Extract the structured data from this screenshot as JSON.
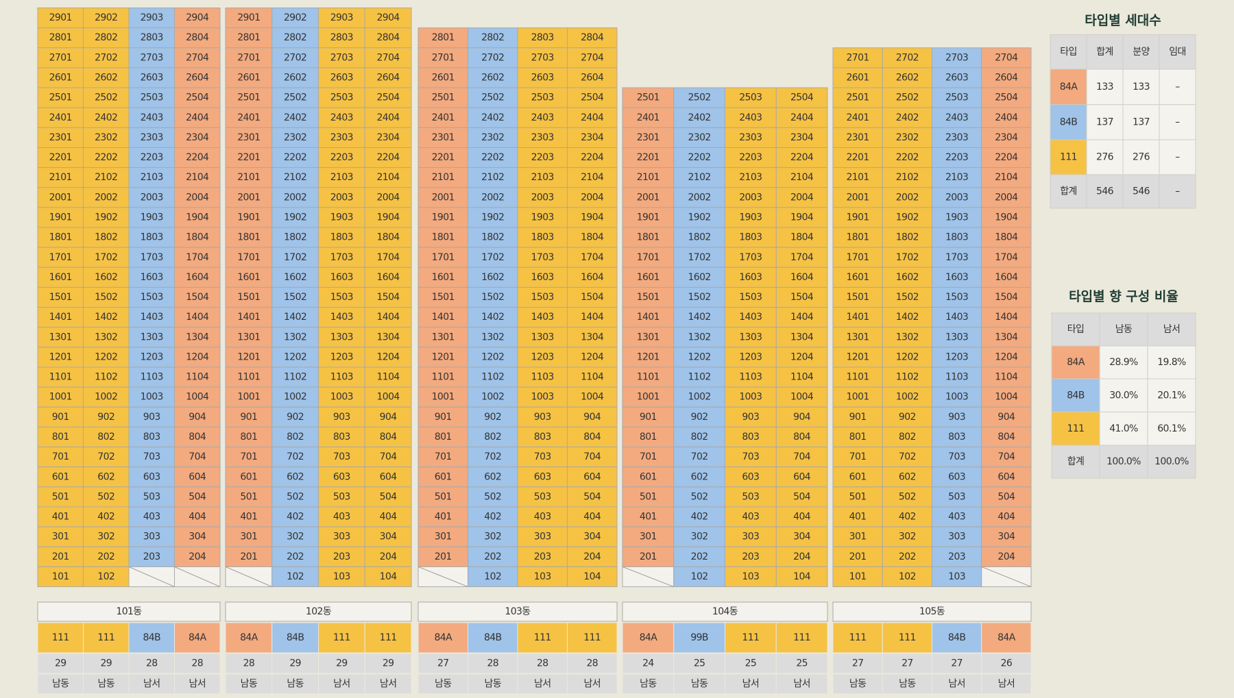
{
  "buildings": [
    {
      "name": "101동",
      "types": [
        "111",
        "111",
        "84B",
        "84A"
      ],
      "counts": [
        29,
        29,
        28,
        28
      ],
      "directions": [
        "남동",
        "남동",
        "남서",
        "남서"
      ],
      "rows": [
        [
          "2901",
          "2902",
          "2903",
          "2904"
        ],
        [
          "2801",
          "2802",
          "2803",
          "2804"
        ],
        [
          "2701",
          "2702",
          "2703",
          "2704"
        ],
        [
          "2601",
          "2602",
          "2603",
          "2604"
        ],
        [
          "2501",
          "2502",
          "2503",
          "2504"
        ],
        [
          "2401",
          "2402",
          "2403",
          "2404"
        ],
        [
          "2301",
          "2302",
          "2303",
          "2304"
        ],
        [
          "2201",
          "2202",
          "2203",
          "2204"
        ],
        [
          "2101",
          "2102",
          "2103",
          "2104"
        ],
        [
          "2001",
          "2002",
          "2003",
          "2004"
        ],
        [
          "1901",
          "1902",
          "1903",
          "1904"
        ],
        [
          "1801",
          "1802",
          "1803",
          "1804"
        ],
        [
          "1701",
          "1702",
          "1703",
          "1704"
        ],
        [
          "1601",
          "1602",
          "1603",
          "1604"
        ],
        [
          "1501",
          "1502",
          "1503",
          "1504"
        ],
        [
          "1401",
          "1402",
          "1403",
          "1404"
        ],
        [
          "1301",
          "1302",
          "1303",
          "1304"
        ],
        [
          "1201",
          "1202",
          "1203",
          "1204"
        ],
        [
          "1101",
          "1102",
          "1103",
          "1104"
        ],
        [
          "1001",
          "1002",
          "1003",
          "1004"
        ],
        [
          "901",
          "902",
          "903",
          "904"
        ],
        [
          "801",
          "802",
          "803",
          "804"
        ],
        [
          "701",
          "702",
          "703",
          "704"
        ],
        [
          "601",
          "602",
          "603",
          "604"
        ],
        [
          "501",
          "502",
          "503",
          "504"
        ],
        [
          "401",
          "402",
          "403",
          "404"
        ],
        [
          "301",
          "302",
          "303",
          "304"
        ],
        [
          "201",
          "202",
          "203",
          "204"
        ],
        [
          "101",
          "102",
          null,
          null
        ]
      ]
    },
    {
      "name": "102동",
      "types": [
        "84A",
        "84B",
        "111",
        "111"
      ],
      "counts": [
        28,
        29,
        29,
        29
      ],
      "directions": [
        "남동",
        "남동",
        "남서",
        "남서"
      ],
      "rows": [
        [
          "2901",
          "2902",
          "2903",
          "2904"
        ],
        [
          "2801",
          "2802",
          "2803",
          "2804"
        ],
        [
          "2701",
          "2702",
          "2703",
          "2704"
        ],
        [
          "2601",
          "2602",
          "2603",
          "2604"
        ],
        [
          "2501",
          "2502",
          "2503",
          "2504"
        ],
        [
          "2401",
          "2402",
          "2403",
          "2404"
        ],
        [
          "2301",
          "2302",
          "2303",
          "2304"
        ],
        [
          "2201",
          "2202",
          "2203",
          "2204"
        ],
        [
          "2101",
          "2102",
          "2103",
          "2104"
        ],
        [
          "2001",
          "2002",
          "2003",
          "2004"
        ],
        [
          "1901",
          "1902",
          "1903",
          "1904"
        ],
        [
          "1801",
          "1802",
          "1803",
          "1804"
        ],
        [
          "1701",
          "1702",
          "1703",
          "1704"
        ],
        [
          "1601",
          "1602",
          "1603",
          "1604"
        ],
        [
          "1501",
          "1502",
          "1503",
          "1504"
        ],
        [
          "1401",
          "1402",
          "1403",
          "1404"
        ],
        [
          "1301",
          "1302",
          "1303",
          "1304"
        ],
        [
          "1201",
          "1202",
          "1203",
          "1204"
        ],
        [
          "1101",
          "1102",
          "1103",
          "1104"
        ],
        [
          "1001",
          "1002",
          "1003",
          "1004"
        ],
        [
          "901",
          "902",
          "903",
          "904"
        ],
        [
          "801",
          "802",
          "803",
          "804"
        ],
        [
          "701",
          "702",
          "703",
          "704"
        ],
        [
          "601",
          "602",
          "603",
          "604"
        ],
        [
          "501",
          "502",
          "503",
          "504"
        ],
        [
          "401",
          "402",
          "403",
          "404"
        ],
        [
          "301",
          "302",
          "303",
          "304"
        ],
        [
          "201",
          "202",
          "203",
          "204"
        ],
        [
          null,
          "102",
          "103",
          "104"
        ]
      ]
    },
    {
      "name": "103동",
      "types": [
        "84A",
        "84B",
        "111",
        "111"
      ],
      "counts": [
        27,
        28,
        28,
        28
      ],
      "directions": [
        "남동",
        "남동",
        "남서",
        "남서"
      ],
      "rows": [
        [
          "2801",
          "2802",
          "2803",
          "2804"
        ],
        [
          "2701",
          "2702",
          "2703",
          "2704"
        ],
        [
          "2601",
          "2602",
          "2603",
          "2604"
        ],
        [
          "2501",
          "2502",
          "2503",
          "2504"
        ],
        [
          "2401",
          "2402",
          "2403",
          "2404"
        ],
        [
          "2301",
          "2302",
          "2303",
          "2304"
        ],
        [
          "2201",
          "2202",
          "2203",
          "2204"
        ],
        [
          "2101",
          "2102",
          "2103",
          "2104"
        ],
        [
          "2001",
          "2002",
          "2003",
          "2004"
        ],
        [
          "1901",
          "1902",
          "1903",
          "1904"
        ],
        [
          "1801",
          "1802",
          "1803",
          "1804"
        ],
        [
          "1701",
          "1702",
          "1703",
          "1704"
        ],
        [
          "1601",
          "1602",
          "1603",
          "1604"
        ],
        [
          "1501",
          "1502",
          "1503",
          "1504"
        ],
        [
          "1401",
          "1402",
          "1403",
          "1404"
        ],
        [
          "1301",
          "1302",
          "1303",
          "1304"
        ],
        [
          "1201",
          "1202",
          "1203",
          "1204"
        ],
        [
          "1101",
          "1102",
          "1103",
          "1104"
        ],
        [
          "1001",
          "1002",
          "1003",
          "1004"
        ],
        [
          "901",
          "902",
          "903",
          "904"
        ],
        [
          "801",
          "802",
          "803",
          "804"
        ],
        [
          "701",
          "702",
          "703",
          "704"
        ],
        [
          "601",
          "602",
          "603",
          "604"
        ],
        [
          "501",
          "502",
          "503",
          "504"
        ],
        [
          "401",
          "402",
          "403",
          "404"
        ],
        [
          "301",
          "302",
          "303",
          "304"
        ],
        [
          "201",
          "202",
          "203",
          "204"
        ],
        [
          null,
          "102",
          "103",
          "104"
        ]
      ]
    },
    {
      "name": "104동",
      "types": [
        "84A",
        "99B",
        "111",
        "111"
      ],
      "counts": [
        24,
        25,
        25,
        25
      ],
      "directions": [
        "남동",
        "남동",
        "남서",
        "남서"
      ],
      "rows": [
        [
          "2501",
          "2502",
          "2503",
          "2504"
        ],
        [
          "2401",
          "2402",
          "2403",
          "2404"
        ],
        [
          "2301",
          "2302",
          "2303",
          "2304"
        ],
        [
          "2201",
          "2202",
          "2203",
          "2204"
        ],
        [
          "2101",
          "2102",
          "2103",
          "2104"
        ],
        [
          "2001",
          "2002",
          "2003",
          "2004"
        ],
        [
          "1901",
          "1902",
          "1903",
          "1904"
        ],
        [
          "1801",
          "1802",
          "1803",
          "1804"
        ],
        [
          "1701",
          "1702",
          "1703",
          "1704"
        ],
        [
          "1601",
          "1602",
          "1603",
          "1604"
        ],
        [
          "1501",
          "1502",
          "1503",
          "1504"
        ],
        [
          "1401",
          "1402",
          "1403",
          "1404"
        ],
        [
          "1301",
          "1302",
          "1303",
          "1304"
        ],
        [
          "1201",
          "1202",
          "1203",
          "1204"
        ],
        [
          "1101",
          "1102",
          "1103",
          "1104"
        ],
        [
          "1001",
          "1002",
          "1003",
          "1004"
        ],
        [
          "901",
          "902",
          "903",
          "904"
        ],
        [
          "801",
          "802",
          "803",
          "804"
        ],
        [
          "701",
          "702",
          "703",
          "704"
        ],
        [
          "601",
          "602",
          "603",
          "604"
        ],
        [
          "501",
          "502",
          "503",
          "504"
        ],
        [
          "401",
          "402",
          "403",
          "404"
        ],
        [
          "301",
          "302",
          "303",
          "304"
        ],
        [
          "201",
          "202",
          "203",
          "204"
        ],
        [
          null,
          "102",
          "103",
          "104"
        ]
      ]
    },
    {
      "name": "105동",
      "types": [
        "111",
        "111",
        "84B",
        "84A"
      ],
      "counts": [
        27,
        27,
        27,
        26
      ],
      "directions": [
        "남동",
        "남동",
        "남서",
        "남서"
      ],
      "rows": [
        [
          "2701",
          "2702",
          "2703",
          "2704"
        ],
        [
          "2601",
          "2602",
          "2603",
          "2604"
        ],
        [
          "2501",
          "2502",
          "2503",
          "2504"
        ],
        [
          "2401",
          "2402",
          "2403",
          "2404"
        ],
        [
          "2301",
          "2302",
          "2303",
          "2304"
        ],
        [
          "2201",
          "2202",
          "2203",
          "2204"
        ],
        [
          "2101",
          "2102",
          "2103",
          "2104"
        ],
        [
          "2001",
          "2002",
          "2003",
          "2004"
        ],
        [
          "1901",
          "1902",
          "1903",
          "1904"
        ],
        [
          "1801",
          "1802",
          "1803",
          "1804"
        ],
        [
          "1701",
          "1702",
          "1703",
          "1704"
        ],
        [
          "1601",
          "1602",
          "1603",
          "1604"
        ],
        [
          "1501",
          "1502",
          "1503",
          "1504"
        ],
        [
          "1401",
          "1402",
          "1403",
          "1404"
        ],
        [
          "1301",
          "1302",
          "1303",
          "1304"
        ],
        [
          "1201",
          "1202",
          "1203",
          "1204"
        ],
        [
          "1101",
          "1102",
          "1103",
          "1104"
        ],
        [
          "1001",
          "1002",
          "1003",
          "1004"
        ],
        [
          "901",
          "902",
          "903",
          "904"
        ],
        [
          "801",
          "802",
          "803",
          "804"
        ],
        [
          "701",
          "702",
          "703",
          "704"
        ],
        [
          "601",
          "602",
          "603",
          "604"
        ],
        [
          "501",
          "502",
          "503",
          "504"
        ],
        [
          "401",
          "402",
          "403",
          "404"
        ],
        [
          "301",
          "302",
          "303",
          "304"
        ],
        [
          "201",
          "202",
          "203",
          "204"
        ],
        [
          "101",
          "102",
          "103",
          null
        ]
      ]
    }
  ],
  "type_count": {
    "title": "타입별 세대수",
    "header": [
      "타입",
      "합계",
      "분양",
      "임대"
    ],
    "rows": [
      [
        "84A",
        133,
        133,
        "–"
      ],
      [
        "84B",
        137,
        137,
        "–"
      ],
      [
        "111",
        276,
        276,
        "–"
      ],
      [
        "합계",
        546,
        546,
        "–"
      ]
    ]
  },
  "type_ratio": {
    "title": "타입별 향 구성 비율",
    "header": [
      "타입",
      "남동",
      "남서"
    ],
    "rows": [
      [
        "84A",
        "28.9%",
        "19.8%"
      ],
      [
        "84B",
        "30.0%",
        "20.1%"
      ],
      [
        "111",
        "41.0%",
        "60.1%"
      ],
      [
        "합계",
        "100.0%",
        "100.0%"
      ]
    ]
  },
  "colors": {
    "84A": "#f3aa7f",
    "84B": "#9fc3e9",
    "99B": "#9fc3e9",
    "111": "#f6c244"
  }
}
